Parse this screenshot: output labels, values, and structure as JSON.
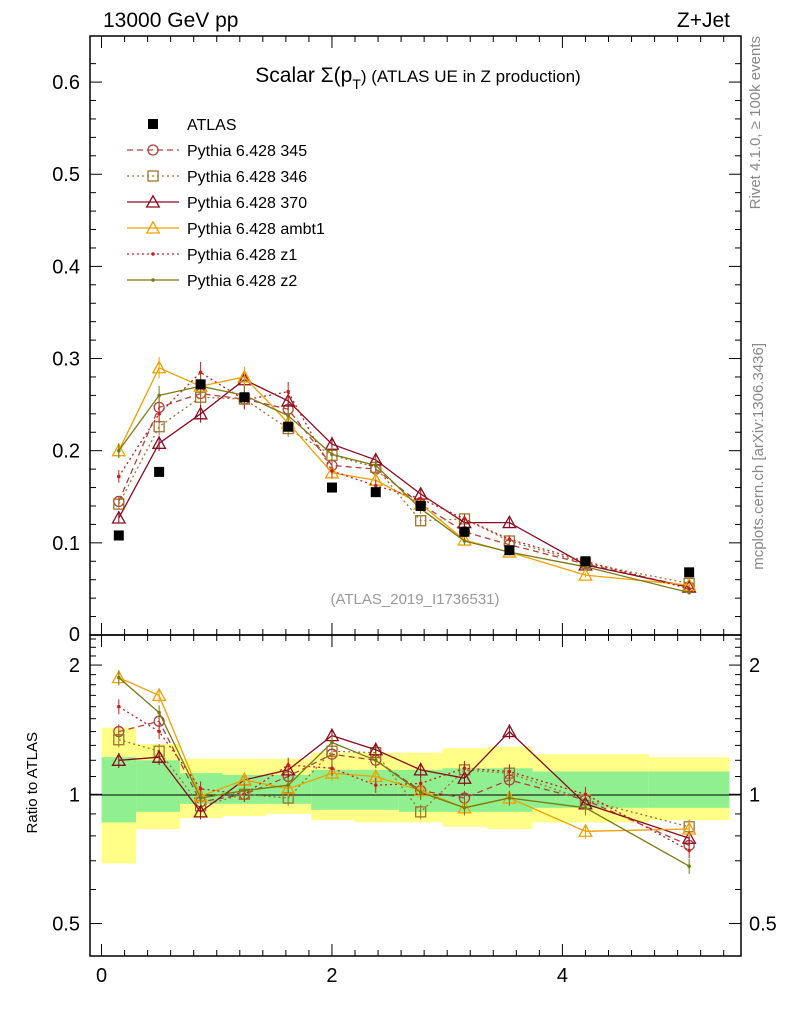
{
  "header": {
    "energy_label": "13000 GeV pp",
    "process_label": "Z+Jet",
    "side_label_rivet": "Rivet 4.1.0, ≥ 100k events",
    "side_label_mcplots": "mcplots.cern.ch [arXiv:1306.3436]"
  },
  "colors": {
    "atlas": "#000000",
    "p345": "#B0413E",
    "p346": "#A0732E",
    "p370": "#8B0A20",
    "ambt1": "#F0A000",
    "z1": "#C81E1E",
    "z2": "#7A7A10",
    "band_green": "#90F090",
    "band_yellow": "#FFFF88"
  },
  "chart_data": [
    {
      "type": "line",
      "title": "Scalar Σ(p_T) (ATLAS UE in Z production)",
      "title_main": "Scalar Σ(p",
      "title_sub": "T",
      "title_tail": ") (ATLAS UE in Z production)",
      "watermark": "(ATLAS_2019_I1736531)",
      "xlim": [
        -0.1,
        5.55
      ],
      "ylim": [
        0,
        0.65
      ],
      "yticks": [
        0.1,
        0.2,
        0.3,
        0.4,
        0.5,
        0.6
      ],
      "ytick_labels": [
        "0.1",
        "0.2",
        "0.3",
        "0.4",
        "0.5",
        "0.6"
      ],
      "y_zero_label": "0",
      "x": [
        0.15,
        0.5,
        0.86,
        1.24,
        1.62,
        2.0,
        2.38,
        2.77,
        3.15,
        3.54,
        4.2,
        5.1
      ],
      "legend_position": "top-left",
      "series": [
        {
          "name": "ATLAS",
          "key": "atlas",
          "marker": "square-filled",
          "line": "none",
          "values": [
            0.108,
            0.177,
            0.272,
            0.258,
            0.226,
            0.16,
            0.155,
            0.14,
            0.112,
            0.092,
            0.08,
            0.068
          ]
        },
        {
          "name": "Pythia 6.428 345",
          "key": "p345",
          "marker": "circle-open",
          "line": "dashed",
          "values": [
            0.145,
            0.247,
            0.262,
            0.256,
            0.245,
            0.184,
            0.18,
            0.142,
            0.112,
            0.098,
            0.077,
            0.052
          ]
        },
        {
          "name": "Pythia 6.428 346",
          "key": "p346",
          "marker": "square-open",
          "line": "dotted",
          "values": [
            0.142,
            0.226,
            0.258,
            0.256,
            0.224,
            0.195,
            0.182,
            0.124,
            0.126,
            0.102,
            0.078,
            0.056
          ]
        },
        {
          "name": "Pythia 6.428 370",
          "key": "p370",
          "marker": "triangle-open",
          "line": "solid",
          "values": [
            0.127,
            0.208,
            0.24,
            0.277,
            0.254,
            0.207,
            0.19,
            0.153,
            0.122,
            0.122,
            0.076,
            0.052
          ]
        },
        {
          "name": "Pythia 6.428 ambt1",
          "key": "ambt1",
          "marker": "triangle-open",
          "line": "solid",
          "values": [
            0.2,
            0.29,
            0.27,
            0.28,
            0.23,
            0.176,
            0.168,
            0.142,
            0.103,
            0.09,
            0.065,
            0.054
          ]
        },
        {
          "name": "Pythia 6.428 z1",
          "key": "z1",
          "marker": "dot",
          "line": "dotted",
          "values": [
            0.172,
            0.24,
            0.285,
            0.255,
            0.264,
            0.178,
            0.162,
            0.148,
            0.126,
            0.104,
            0.08,
            0.05
          ]
        },
        {
          "name": "Pythia 6.428 z2",
          "key": "z2",
          "marker": "dot",
          "line": "solid",
          "values": [
            0.2,
            0.26,
            0.27,
            0.26,
            0.238,
            0.196,
            0.184,
            0.137,
            0.102,
            0.09,
            0.074,
            0.046
          ]
        }
      ]
    },
    {
      "type": "line",
      "title": "Ratio to ATLAS",
      "ylabel": "Ratio to ATLAS",
      "scale": "log",
      "xlim": [
        -0.1,
        5.55
      ],
      "ylim": [
        0.42,
        2.35
      ],
      "yticks": [
        0.5,
        1,
        2
      ],
      "ytick_labels": [
        "0.5",
        "1",
        "2"
      ],
      "xticks": [
        0,
        2,
        4
      ],
      "xtick_labels": [
        "0",
        "2",
        "4"
      ],
      "x": [
        0.15,
        0.5,
        0.86,
        1.24,
        1.62,
        2.0,
        2.38,
        2.77,
        3.15,
        3.54,
        4.2,
        5.1
      ],
      "bin_edges": [
        0.0,
        0.3,
        0.68,
        1.05,
        1.43,
        1.82,
        2.2,
        2.58,
        2.96,
        3.35,
        3.74,
        4.75,
        5.45
      ],
      "band_green": [
        [
          0.86,
          1.22
        ],
        [
          0.91,
          1.2
        ],
        [
          0.95,
          1.12
        ],
        [
          0.95,
          1.11
        ],
        [
          0.95,
          1.11
        ],
        [
          0.92,
          1.14
        ],
        [
          0.92,
          1.14
        ],
        [
          0.91,
          1.14
        ],
        [
          0.91,
          1.15
        ],
        [
          0.91,
          1.15
        ],
        [
          0.93,
          1.13
        ],
        [
          0.93,
          1.13
        ]
      ],
      "band_yellow": [
        [
          0.69,
          1.43
        ],
        [
          0.83,
          1.31
        ],
        [
          0.88,
          1.21
        ],
        [
          0.89,
          1.21
        ],
        [
          0.9,
          1.21
        ],
        [
          0.87,
          1.25
        ],
        [
          0.86,
          1.25
        ],
        [
          0.86,
          1.25
        ],
        [
          0.84,
          1.28
        ],
        [
          0.83,
          1.29
        ],
        [
          0.86,
          1.24
        ],
        [
          0.87,
          1.22
        ]
      ],
      "series": [
        {
          "name": "Pythia 6.428 345",
          "key": "p345",
          "marker": "circle-open",
          "line": "dashed",
          "values": [
            1.4,
            1.48,
            0.96,
            1.0,
            1.1,
            1.24,
            1.2,
            1.02,
            0.98,
            1.08,
            0.97,
            0.76
          ]
        },
        {
          "name": "Pythia 6.428 346",
          "key": "p346",
          "marker": "square-open",
          "line": "dotted",
          "values": [
            1.34,
            1.26,
            0.94,
            1.0,
            0.98,
            1.26,
            1.25,
            0.91,
            1.14,
            1.12,
            0.97,
            0.84
          ]
        },
        {
          "name": "Pythia 6.428 370",
          "key": "p370",
          "marker": "triangle-open",
          "line": "solid",
          "values": [
            1.2,
            1.22,
            0.91,
            1.08,
            1.14,
            1.37,
            1.27,
            1.14,
            1.09,
            1.4,
            0.95,
            0.79
          ]
        },
        {
          "name": "Pythia 6.428 ambt1",
          "key": "ambt1",
          "marker": "triangle-open",
          "line": "solid",
          "values": [
            1.87,
            1.7,
            0.99,
            1.08,
            1.03,
            1.12,
            1.1,
            1.02,
            0.93,
            0.98,
            0.82,
            0.83
          ]
        },
        {
          "name": "Pythia 6.428 z1",
          "key": "z1",
          "marker": "dot",
          "line": "dotted",
          "values": [
            1.6,
            1.4,
            1.03,
            1.0,
            1.17,
            1.15,
            1.05,
            1.06,
            1.15,
            1.13,
            1.0,
            0.74
          ]
        },
        {
          "name": "Pythia 6.428 z2",
          "key": "z2",
          "marker": "dot",
          "line": "solid",
          "values": [
            1.87,
            1.55,
            0.98,
            1.02,
            1.05,
            1.32,
            1.2,
            1.01,
            0.93,
            0.98,
            0.93,
            0.68
          ]
        }
      ]
    }
  ]
}
